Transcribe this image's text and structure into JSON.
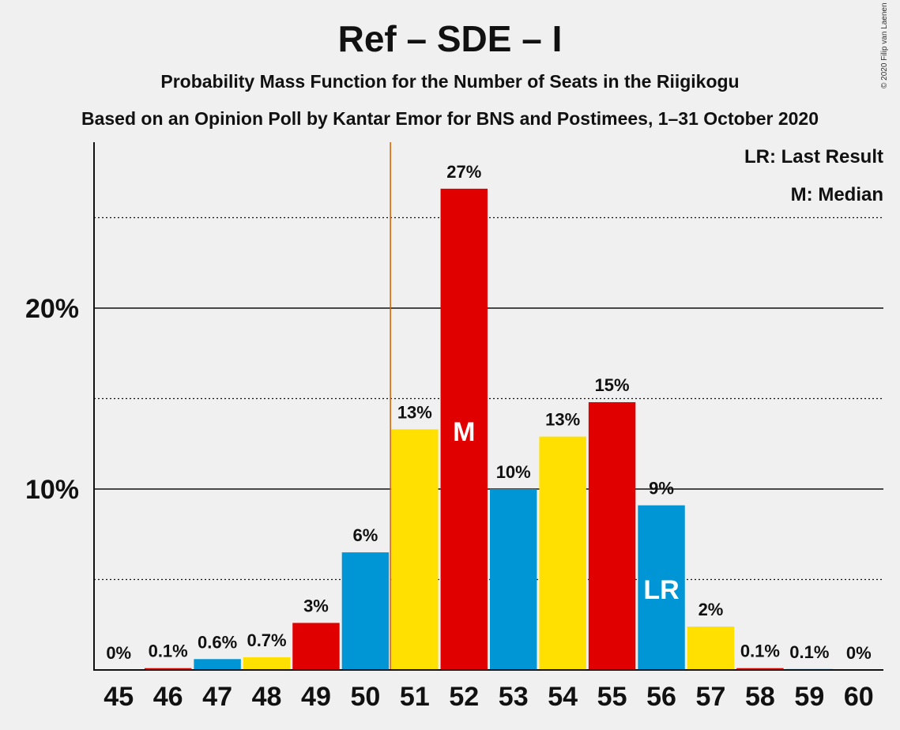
{
  "title": "Ref – SDE – I",
  "subtitle": "Probability Mass Function for the Number of Seats in the Riigikogu",
  "subtitle2": "Based on an Opinion Poll by Kantar Emor for BNS and Postimees, 1–31 October 2020",
  "copyright": "© 2020 Filip van Laenen",
  "legend": {
    "last_result": "LR: Last Result",
    "median": "M: Median"
  },
  "colors": {
    "red": "#e00000",
    "blue": "#0096d6",
    "yellow": "#ffe000",
    "last_result_line": "#d06000"
  },
  "chart_data": {
    "type": "bar",
    "categories": [
      "45",
      "46",
      "47",
      "48",
      "49",
      "50",
      "51",
      "52",
      "53",
      "54",
      "55",
      "56",
      "57",
      "58",
      "59",
      "60"
    ],
    "values": [
      0,
      0.1,
      0.6,
      0.7,
      2.6,
      6.5,
      13.3,
      26.6,
      10.0,
      12.9,
      14.8,
      9.1,
      2.4,
      0.1,
      0.05,
      0
    ],
    "labels": [
      "0%",
      "0.1%",
      "0.6%",
      "0.7%",
      "3%",
      "6%",
      "13%",
      "27%",
      "10%",
      "13%",
      "15%",
      "9%",
      "2%",
      "0.1%",
      "0.1%",
      "0%"
    ],
    "bar_colors": [
      "yellow",
      "red",
      "blue",
      "yellow",
      "red",
      "blue",
      "yellow",
      "red",
      "blue",
      "yellow",
      "red",
      "blue",
      "yellow",
      "red",
      "blue",
      "yellow"
    ],
    "ylim": [
      0,
      29
    ],
    "yticks": [
      {
        "value": 10,
        "label": "10%"
      },
      {
        "value": 20,
        "label": "20%"
      }
    ],
    "minor_gridlines": [
      5,
      15,
      25
    ],
    "median_seat": "52",
    "median_label": "M",
    "last_result_seat": "56",
    "last_result_label": "LR",
    "last_result_line_after_seat": "50",
    "grid": true,
    "legend_position": "top-right"
  }
}
